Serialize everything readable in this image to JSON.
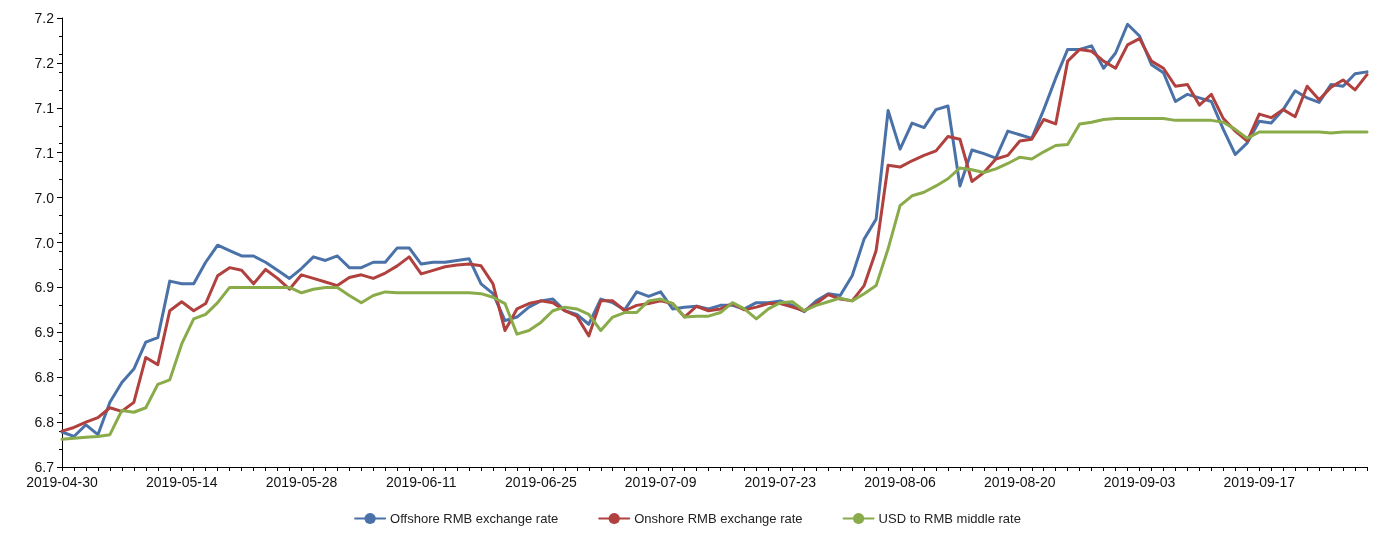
{
  "chart_data": {
    "type": "line",
    "categories": [
      "2019-04-30",
      null,
      null,
      null,
      null,
      null,
      null,
      null,
      null,
      null,
      "2019-05-14",
      null,
      null,
      null,
      null,
      null,
      null,
      null,
      null,
      null,
      "2019-05-28",
      null,
      null,
      null,
      null,
      null,
      null,
      null,
      null,
      null,
      "2019-06-11",
      null,
      null,
      null,
      null,
      null,
      null,
      null,
      null,
      null,
      "2019-06-25",
      null,
      null,
      null,
      null,
      null,
      null,
      null,
      null,
      null,
      "2019-07-09",
      null,
      null,
      null,
      null,
      null,
      null,
      null,
      null,
      null,
      "2019-07-23",
      null,
      null,
      null,
      null,
      null,
      null,
      null,
      null,
      null,
      "2019-08-06",
      null,
      null,
      null,
      null,
      null,
      null,
      null,
      null,
      null,
      "2019-08-20",
      null,
      null,
      null,
      null,
      null,
      null,
      null,
      null,
      null,
      "2019-09-03",
      null,
      null,
      null,
      null,
      null,
      null,
      null,
      null,
      null,
      "2019-09-17",
      null,
      null,
      null,
      null,
      null,
      null,
      null,
      null,
      null
    ],
    "series": [
      {
        "name": "Offshore RMB exchange rate",
        "color": "#4a72a8",
        "values": [
          6.739,
          6.734,
          6.747,
          6.736,
          6.772,
          6.794,
          6.809,
          6.839,
          6.844,
          6.907,
          6.904,
          6.904,
          6.928,
          6.947,
          6.941,
          6.935,
          6.935,
          6.928,
          6.919,
          6.91,
          6.921,
          6.934,
          6.93,
          6.935,
          6.922,
          6.922,
          6.928,
          6.928,
          6.944,
          6.944,
          6.926,
          6.928,
          6.928,
          6.93,
          6.932,
          6.904,
          6.893,
          6.863,
          6.867,
          6.878,
          6.885,
          6.887,
          6.874,
          6.87,
          6.859,
          6.887,
          6.883,
          6.875,
          6.895,
          6.89,
          6.895,
          6.876,
          6.878,
          6.879,
          6.876,
          6.88,
          6.88,
          6.876,
          6.883,
          6.883,
          6.885,
          6.88,
          6.873,
          6.885,
          6.893,
          6.891,
          6.913,
          6.954,
          6.976,
          7.097,
          7.054,
          7.083,
          7.078,
          7.098,
          7.102,
          7.013,
          7.053,
          7.049,
          7.044,
          7.074,
          7.07,
          7.066,
          7.098,
          7.133,
          7.165,
          7.165,
          7.169,
          7.144,
          7.161,
          7.193,
          7.18,
          7.148,
          7.139,
          7.107,
          7.115,
          7.111,
          7.107,
          7.076,
          7.048,
          7.061,
          7.085,
          7.083,
          7.098,
          7.119,
          7.111,
          7.106,
          7.126,
          7.124,
          7.138,
          7.14
        ]
      },
      {
        "name": "Onshore RMB exchange rate",
        "color": "#b0413e",
        "values": [
          6.74,
          6.744,
          6.75,
          6.755,
          6.766,
          6.762,
          6.772,
          6.822,
          6.814,
          6.874,
          6.884,
          6.874,
          6.882,
          6.913,
          6.922,
          6.919,
          6.904,
          6.92,
          6.91,
          6.898,
          6.914,
          6.91,
          6.906,
          6.902,
          6.911,
          6.914,
          6.91,
          6.916,
          6.924,
          6.934,
          6.915,
          6.919,
          6.923,
          6.925,
          6.926,
          6.924,
          6.904,
          6.852,
          6.876,
          6.882,
          6.885,
          6.883,
          6.874,
          6.868,
          6.846,
          6.885,
          6.885,
          6.874,
          6.88,
          6.882,
          6.885,
          6.882,
          6.867,
          6.879,
          6.874,
          6.876,
          6.882,
          6.875,
          6.878,
          6.882,
          6.882,
          6.878,
          6.874,
          6.882,
          6.892,
          6.887,
          6.885,
          6.902,
          6.941,
          7.036,
          7.034,
          7.041,
          7.047,
          7.052,
          7.068,
          7.065,
          7.018,
          7.028,
          7.043,
          7.047,
          7.063,
          7.065,
          7.087,
          7.082,
          7.152,
          7.165,
          7.163,
          7.152,
          7.144,
          7.17,
          7.177,
          7.152,
          7.144,
          7.124,
          7.126,
          7.103,
          7.115,
          7.088,
          7.074,
          7.063,
          7.093,
          7.089,
          7.098,
          7.09,
          7.124,
          7.109,
          7.123,
          7.131,
          7.12,
          7.137
        ]
      },
      {
        "name": "USD to RMB middle rate",
        "color": "#8aab4a",
        "values": [
          6.731,
          6.732,
          6.733,
          6.734,
          6.736,
          6.763,
          6.761,
          6.766,
          6.792,
          6.797,
          6.837,
          6.865,
          6.87,
          6.883,
          6.9,
          6.9,
          6.9,
          6.9,
          6.9,
          6.9,
          6.894,
          6.898,
          6.9,
          6.9,
          6.891,
          6.883,
          6.891,
          6.895,
          6.894,
          6.894,
          6.894,
          6.894,
          6.894,
          6.894,
          6.894,
          6.893,
          6.889,
          6.882,
          6.848,
          6.852,
          6.861,
          6.874,
          6.878,
          6.876,
          6.87,
          6.852,
          6.867,
          6.872,
          6.872,
          6.885,
          6.887,
          6.882,
          6.867,
          6.868,
          6.868,
          6.872,
          6.883,
          6.876,
          6.865,
          6.876,
          6.883,
          6.884,
          6.874,
          6.88,
          6.884,
          6.888,
          6.885,
          6.893,
          6.902,
          6.943,
          6.991,
          7.002,
          7.006,
          7.013,
          7.021,
          7.033,
          7.031,
          7.028,
          7.032,
          7.038,
          7.045,
          7.043,
          7.051,
          7.058,
          7.059,
          7.082,
          7.084,
          7.087,
          7.088,
          7.088,
          7.088,
          7.088,
          7.088,
          7.086,
          7.086,
          7.086,
          7.086,
          7.084,
          7.076,
          7.066,
          7.073,
          7.073,
          7.073,
          7.073,
          7.073,
          7.073,
          7.072,
          7.073,
          7.073,
          7.073
        ]
      }
    ],
    "ylim": [
      6.7,
      7.2
    ],
    "yticks": [
      {
        "value": 6.7,
        "label": "6.7"
      },
      {
        "value": 6.75,
        "label": "6.8"
      },
      {
        "value": 6.8,
        "label": "6.8"
      },
      {
        "value": 6.85,
        "label": "6.9"
      },
      {
        "value": 6.9,
        "label": "6.9"
      },
      {
        "value": 6.95,
        "label": "7.0"
      },
      {
        "value": 7.0,
        "label": "7.0"
      },
      {
        "value": 7.05,
        "label": "7.1"
      },
      {
        "value": 7.1,
        "label": "7.1"
      },
      {
        "value": 7.15,
        "label": "7.2"
      },
      {
        "value": 7.2,
        "label": "7.2"
      }
    ],
    "grid": false,
    "legend": "bottom",
    "marker": "none",
    "line_style": "solid"
  }
}
